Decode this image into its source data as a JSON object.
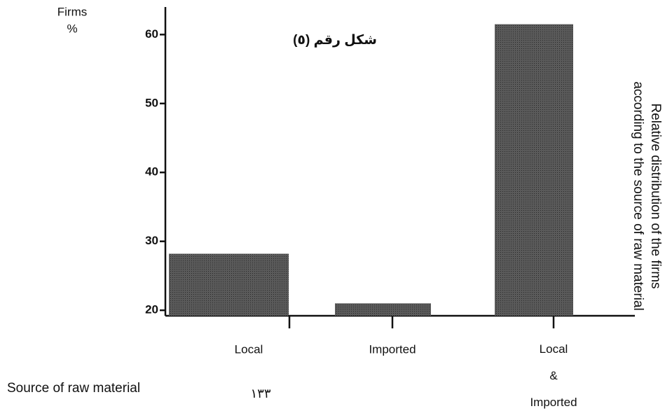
{
  "chart_data": {
    "type": "bar",
    "title": "شكل رقم (٥)",
    "ylabel": [
      "Firms",
      "%"
    ],
    "xlabel": "Source of raw material",
    "side_label": [
      "Relative distribution of the firms",
      "according to the source of raw material"
    ],
    "page_number": "١٣٣",
    "categories": [
      "Local",
      "Imported",
      "Local & Imported"
    ],
    "values": [
      28.2,
      21.0,
      61.5
    ],
    "color": "#4a4a4a",
    "ylim": [
      19.2,
      64
    ],
    "yticks": [
      20,
      30,
      40,
      50,
      60
    ],
    "grid": false
  }
}
